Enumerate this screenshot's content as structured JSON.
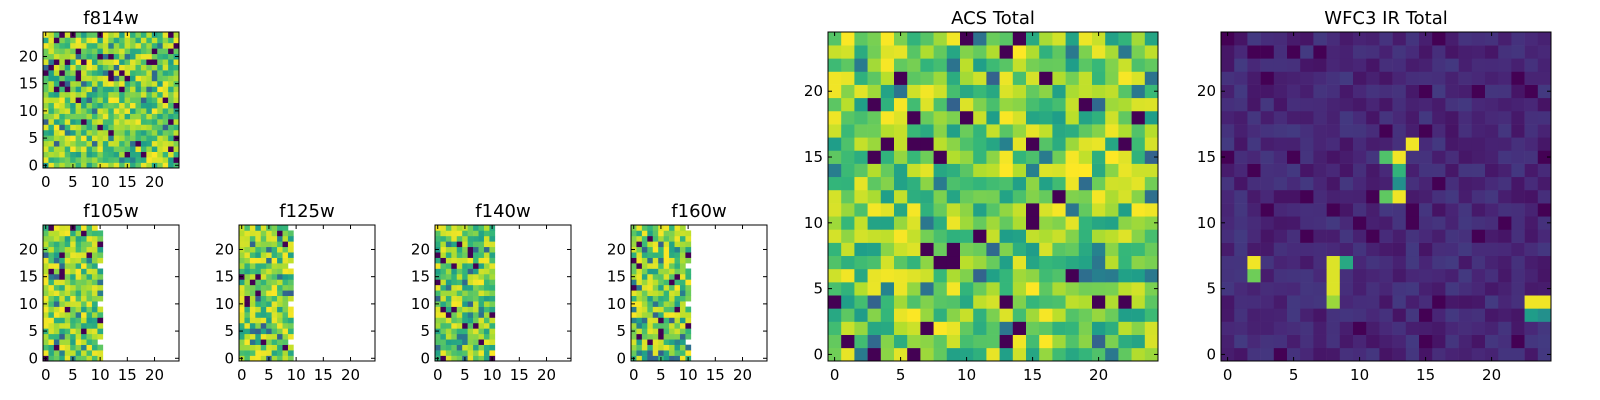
{
  "figure": {
    "panels": [
      {
        "key": "f814w",
        "title": "f814w"
      },
      {
        "key": "f105w",
        "title": "f105w"
      },
      {
        "key": "f125w",
        "title": "f125w"
      },
      {
        "key": "f140w",
        "title": "f140w"
      },
      {
        "key": "f160w",
        "title": "f160w"
      },
      {
        "key": "acs",
        "title": "ACS Total"
      },
      {
        "key": "wfc3",
        "title": "WFC3 IR Total"
      }
    ]
  },
  "chart_data": [
    {
      "key": "f814w",
      "type": "heatmap",
      "title": "f814w",
      "colormap": "viridis",
      "xlim": [
        0,
        25
      ],
      "ylim": [
        0,
        25
      ],
      "xticks": [
        0,
        5,
        10,
        15,
        20
      ],
      "yticks": [
        0,
        5,
        10,
        15,
        20
      ],
      "data_cols": 25,
      "grid": false,
      "character": "noise, mostly green-yellow"
    },
    {
      "key": "f105w",
      "type": "heatmap",
      "title": "f105w",
      "colormap": "viridis",
      "xlim": [
        0,
        25
      ],
      "ylim": [
        0,
        25
      ],
      "xticks": [
        0,
        5,
        10,
        15,
        20
      ],
      "yticks": [
        0,
        5,
        10,
        15,
        20
      ],
      "data_cols": 11,
      "grid": false,
      "character": "data only in columns 0-10"
    },
    {
      "key": "f125w",
      "type": "heatmap",
      "title": "f125w",
      "colormap": "viridis",
      "xlim": [
        0,
        25
      ],
      "ylim": [
        0,
        25
      ],
      "xticks": [
        0,
        5,
        10,
        15,
        20
      ],
      "yticks": [
        0,
        5,
        10,
        15,
        20
      ],
      "data_cols": 10,
      "grid": false,
      "character": "data only in columns 0-9"
    },
    {
      "key": "f140w",
      "type": "heatmap",
      "title": "f140w",
      "colormap": "viridis",
      "xlim": [
        0,
        25
      ],
      "ylim": [
        0,
        25
      ],
      "xticks": [
        0,
        5,
        10,
        15,
        20
      ],
      "yticks": [
        0,
        5,
        10,
        15,
        20
      ],
      "data_cols": 11,
      "grid": false,
      "character": "data only in columns 0-10"
    },
    {
      "key": "f160w",
      "type": "heatmap",
      "title": "f160w",
      "colormap": "viridis",
      "xlim": [
        0,
        25
      ],
      "ylim": [
        0,
        25
      ],
      "xticks": [
        0,
        5,
        10,
        15,
        20
      ],
      "yticks": [
        0,
        5,
        10,
        15,
        20
      ],
      "data_cols": 11,
      "grid": false,
      "character": "data only in columns 0-10"
    },
    {
      "key": "acs",
      "type": "heatmap",
      "title": "ACS Total",
      "colormap": "viridis",
      "xlim": [
        0,
        25
      ],
      "ylim": [
        0,
        25
      ],
      "xticks": [
        0,
        5,
        10,
        15,
        20
      ],
      "yticks": [
        0,
        5,
        10,
        15,
        20
      ],
      "data_cols": 25,
      "grid": false,
      "character": "noise, mostly green-yellow"
    },
    {
      "key": "wfc3",
      "type": "heatmap",
      "title": "WFC3 IR Total",
      "colormap": "viridis",
      "xlim": [
        0,
        25
      ],
      "ylim": [
        0,
        25
      ],
      "xticks": [
        0,
        5,
        10,
        15,
        20
      ],
      "yticks": [
        0,
        5,
        10,
        15,
        20
      ],
      "data_cols": 25,
      "grid": false,
      "character": "dark background with bright sources",
      "bright_sources": [
        {
          "x": 2,
          "y": 7,
          "level": 0.98
        },
        {
          "x": 2,
          "y": 6,
          "level": 0.78
        },
        {
          "x": 8,
          "y": 7,
          "level": 0.95
        },
        {
          "x": 9,
          "y": 7,
          "level": 0.6
        },
        {
          "x": 8,
          "y": 6,
          "level": 0.95
        },
        {
          "x": 8,
          "y": 5,
          "level": 0.95
        },
        {
          "x": 8,
          "y": 4,
          "level": 0.85
        },
        {
          "x": 12,
          "y": 15,
          "level": 0.72
        },
        {
          "x": 13,
          "y": 15,
          "level": 0.98
        },
        {
          "x": 14,
          "y": 16,
          "level": 0.98
        },
        {
          "x": 13,
          "y": 14,
          "level": 0.65
        },
        {
          "x": 12,
          "y": 12,
          "level": 0.75
        },
        {
          "x": 13,
          "y": 12,
          "level": 0.98
        },
        {
          "x": 13,
          "y": 13,
          "level": 0.5
        },
        {
          "x": 23,
          "y": 4,
          "level": 0.98
        },
        {
          "x": 24,
          "y": 4,
          "level": 0.98
        },
        {
          "x": 23,
          "y": 3,
          "level": 0.55
        },
        {
          "x": 24,
          "y": 3,
          "level": 0.5
        }
      ]
    }
  ]
}
